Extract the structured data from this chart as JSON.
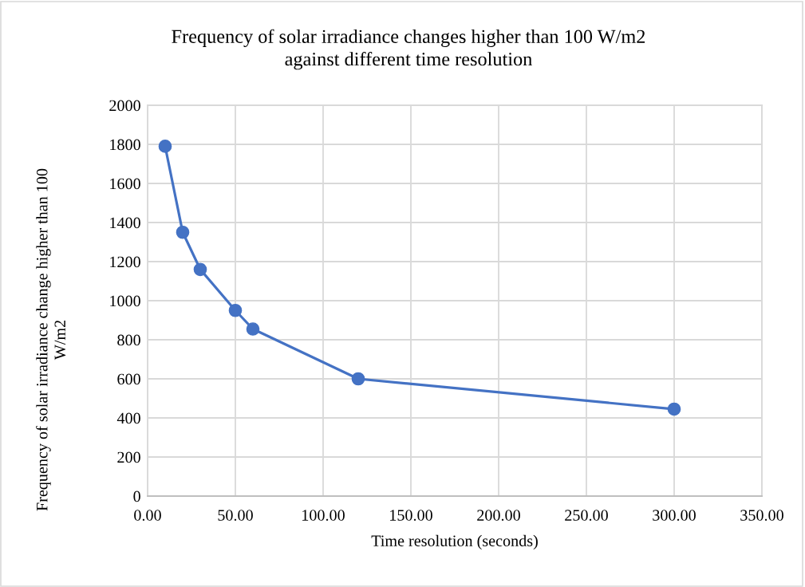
{
  "chart_data": {
    "type": "line",
    "title": "Frequency of solar irradiance changes higher than 100 W/m2\nagainst different time resolution",
    "xlabel": "Time resolution (seconds)",
    "ylabel": "Frequency of solar irradiance change higher than 100\nW/m2",
    "x": [
      10,
      20,
      30,
      50,
      60,
      120,
      300
    ],
    "series": [
      {
        "color": "#4472c4",
        "values": [
          1790,
          1350,
          1160,
          950,
          855,
          600,
          445
        ]
      }
    ],
    "xlim": [
      0,
      350
    ],
    "xticks": [
      {
        "value": 0,
        "label": "0.00"
      },
      {
        "value": 50,
        "label": "50.00"
      },
      {
        "value": 100,
        "label": "100.00"
      },
      {
        "value": 150,
        "label": "150.00"
      },
      {
        "value": 200,
        "label": "200.00"
      },
      {
        "value": 250,
        "label": "250.00"
      },
      {
        "value": 300,
        "label": "300.00"
      },
      {
        "value": 350,
        "label": "350.00"
      }
    ],
    "ylim": [
      0,
      2000
    ],
    "yticks": [
      0,
      200,
      400,
      600,
      800,
      1000,
      1200,
      1400,
      1600,
      1800,
      2000
    ],
    "grid": true,
    "marker": "circle",
    "line_style": "solid"
  }
}
